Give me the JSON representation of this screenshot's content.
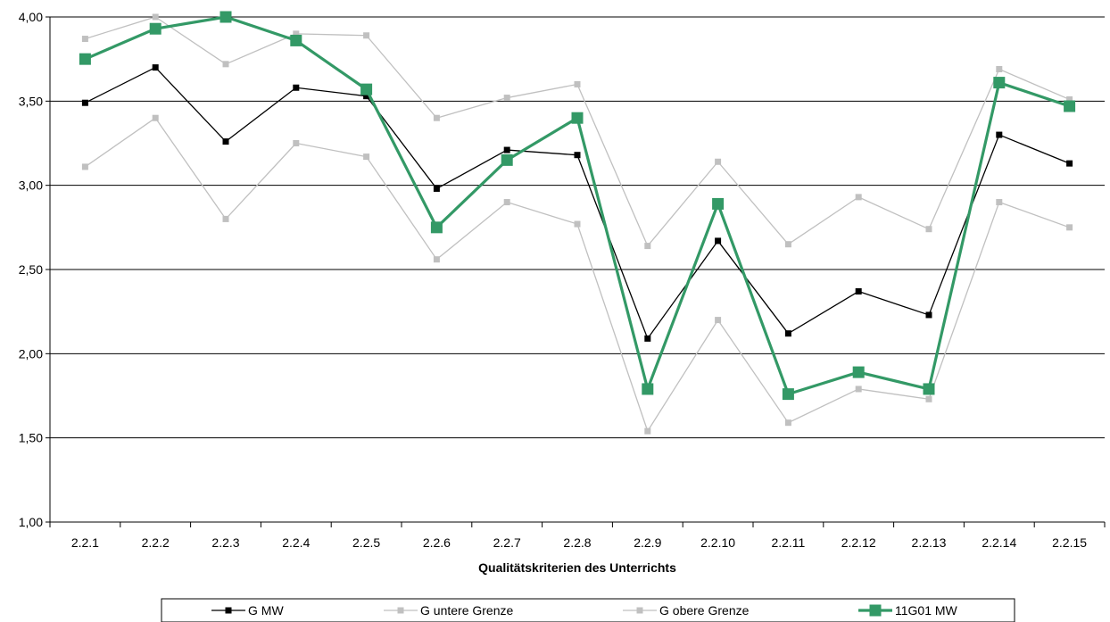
{
  "chart_data": {
    "type": "line",
    "xlabel": "Qualitätskriterien des Unterrichts",
    "ylabel": "",
    "ylim": [
      1.0,
      4.0
    ],
    "ytick_step": 0.5,
    "yticks": [
      "1,00",
      "1,50",
      "2,00",
      "2,50",
      "3,00",
      "3,50",
      "4,00"
    ],
    "categories": [
      "2.2.1",
      "2.2.2",
      "2.2.3",
      "2.2.4",
      "2.2.5",
      "2.2.6",
      "2.2.7",
      "2.2.8",
      "2.2.9",
      "2.2.10",
      "2.2.11",
      "2.2.12",
      "2.2.13",
      "2.2.14",
      "2.2.15"
    ],
    "grid": "horizontal",
    "legend_position": "bottom",
    "series": [
      {
        "name": "G MW",
        "color": "#000000",
        "values": [
          3.49,
          3.7,
          3.26,
          3.58,
          3.53,
          2.98,
          3.21,
          3.18,
          2.09,
          2.67,
          2.12,
          2.37,
          2.23,
          3.3,
          3.13
        ]
      },
      {
        "name": "G untere Grenze",
        "color": "#c0c0c0",
        "values": [
          3.11,
          3.4,
          2.8,
          3.25,
          3.17,
          2.56,
          2.9,
          2.77,
          1.54,
          2.2,
          1.59,
          1.79,
          1.73,
          2.9,
          2.75
        ]
      },
      {
        "name": "G obere Grenze",
        "color": "#c0c0c0",
        "values": [
          3.87,
          4.0,
          3.72,
          3.9,
          3.89,
          3.4,
          3.52,
          3.6,
          2.64,
          3.14,
          2.65,
          2.93,
          2.74,
          3.69,
          3.51
        ]
      },
      {
        "name": "11G01 MW",
        "color": "#339966",
        "values": [
          3.75,
          3.93,
          4.0,
          3.86,
          3.57,
          2.75,
          3.15,
          3.4,
          1.79,
          2.89,
          1.76,
          1.89,
          1.79,
          3.61,
          3.47
        ]
      }
    ]
  }
}
